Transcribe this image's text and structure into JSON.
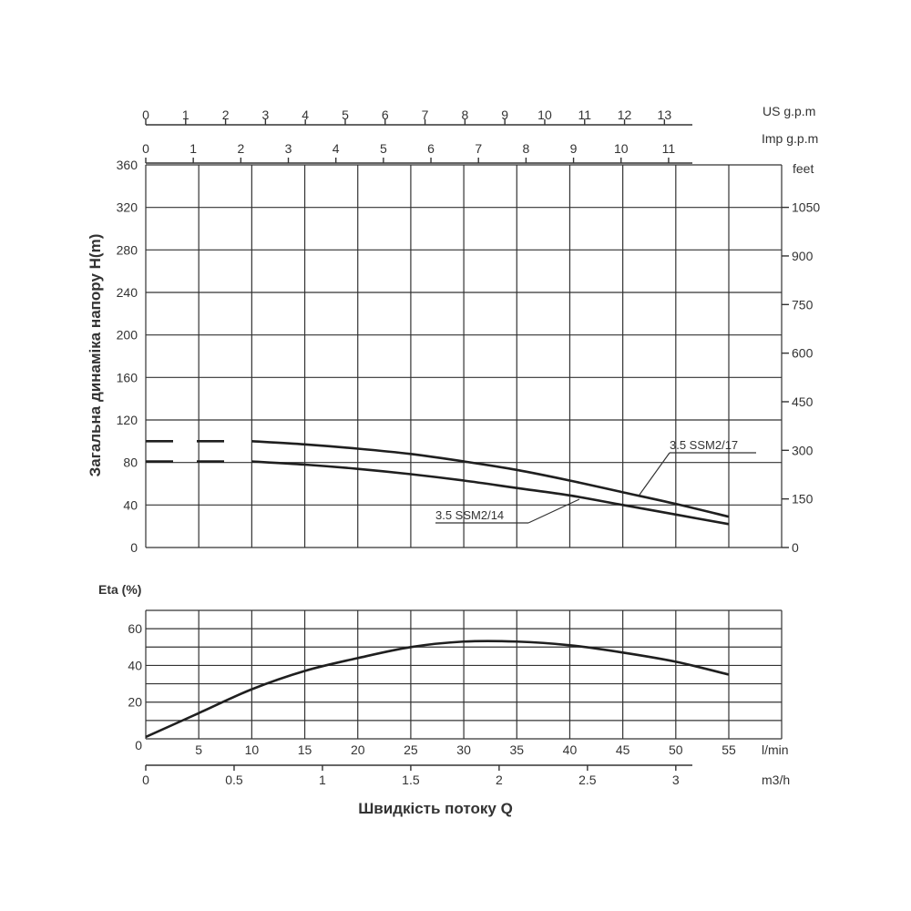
{
  "colors": {
    "line": "#1f1f1f",
    "grid": "#333333",
    "text": "#333333",
    "background": "#ffffff"
  },
  "chart_data": [
    {
      "type": "line",
      "ylabel": "Загальна динаміка напору H(m)",
      "y_ticks": [
        "0",
        "40",
        "80",
        "120",
        "160",
        "200",
        "240",
        "280",
        "320",
        "360"
      ],
      "ylim": [
        0,
        360
      ],
      "y2_label": "feet",
      "y2_ticks": [
        "0",
        "150",
        "300",
        "450",
        "600",
        "750",
        "900",
        "1050"
      ],
      "top_axis_1": {
        "label": "US g.p.m",
        "ticks": [
          "0",
          "1",
          "2",
          "3",
          "4",
          "5",
          "6",
          "7",
          "8",
          "9",
          "10",
          "11",
          "12",
          "13"
        ]
      },
      "top_axis_2": {
        "label": "Imp g.p.m",
        "ticks": [
          "0",
          "1",
          "2",
          "3",
          "4",
          "5",
          "6",
          "7",
          "8",
          "9",
          "10",
          "11"
        ]
      },
      "x_unit": "l/min",
      "xlim": [
        0,
        55
      ],
      "grid": true,
      "series": [
        {
          "name": "3.5 SSM2/17",
          "shutoff_head": 100,
          "x": [
            10,
            15,
            20,
            25,
            30,
            35,
            40,
            45,
            50,
            55
          ],
          "y": [
            100,
            97,
            93,
            88,
            81,
            73,
            63,
            52,
            41,
            29
          ]
        },
        {
          "name": "3.5 SSM2/14",
          "shutoff_head": 81,
          "x": [
            10,
            15,
            20,
            25,
            30,
            35,
            40,
            45,
            50,
            55
          ],
          "y": [
            81,
            78,
            74,
            69,
            63,
            56,
            49,
            40,
            31,
            22
          ]
        }
      ]
    },
    {
      "type": "line",
      "ylabel": "Eta (%)",
      "y_ticks": [
        "0",
        "20",
        "40",
        "60"
      ],
      "ylim": [
        0,
        70
      ],
      "x_ticks": [
        "5",
        "10",
        "15",
        "20",
        "25",
        "30",
        "35",
        "40",
        "45",
        "50",
        "55"
      ],
      "x_unit": "l/min",
      "x2_ticks": [
        "0",
        "0.5",
        "1",
        "1.5",
        "2",
        "2.5",
        "3"
      ],
      "x2_unit": "m3/h",
      "xlabel": "Швидкість потоку Q",
      "xlim": [
        0,
        55
      ],
      "grid": true,
      "series": [
        {
          "x": [
            0,
            5,
            10,
            15,
            20,
            25,
            30,
            35,
            40,
            45,
            50,
            55
          ],
          "y": [
            1,
            14,
            27,
            37,
            44,
            50,
            53,
            53,
            51,
            47,
            42,
            35
          ]
        }
      ]
    }
  ]
}
